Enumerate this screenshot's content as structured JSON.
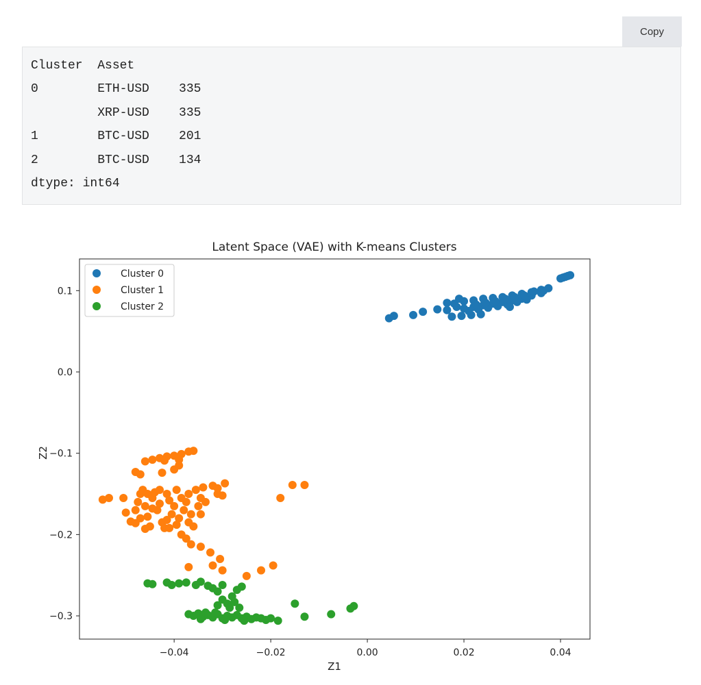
{
  "toolbar": {
    "copy_label": "Copy"
  },
  "output": {
    "lines": [
      "Cluster  Asset",
      "0        ETH-USD    335",
      "         XRP-USD    335",
      "1        BTC-USD    201",
      "2        BTC-USD    134",
      "dtype: int64"
    ]
  },
  "chart_data": {
    "type": "scatter",
    "title": "Latent Space (VAE) with K-means Clusters",
    "xlabel": "Z1",
    "ylabel": "Z2",
    "xlim": [
      -0.0596,
      0.0461
    ],
    "ylim": [
      -0.3286,
      0.139
    ],
    "xticks": [
      -0.04,
      -0.02,
      0.0,
      0.02,
      0.04
    ],
    "xtick_labels": [
      "−0.04",
      "−0.02",
      "0.00",
      "0.02",
      "0.04"
    ],
    "yticks": [
      0.1,
      0.0,
      -0.1,
      -0.2,
      -0.3
    ],
    "ytick_labels": [
      "0.1",
      "0.0",
      "−0.1",
      "−0.2",
      "−0.3"
    ],
    "grid": false,
    "legend_placement": "top-left",
    "series": [
      {
        "name": "Cluster 0",
        "color": "#1f77b4",
        "points": [
          [
            0.0045,
            0.066
          ],
          [
            0.0055,
            0.069
          ],
          [
            0.0095,
            0.07
          ],
          [
            0.0115,
            0.074
          ],
          [
            0.0145,
            0.077
          ],
          [
            0.0165,
            0.076
          ],
          [
            0.0185,
            0.08
          ],
          [
            0.0175,
            0.068
          ],
          [
            0.0195,
            0.069
          ],
          [
            0.0215,
            0.07
          ],
          [
            0.0235,
            0.071
          ],
          [
            0.018,
            0.084
          ],
          [
            0.02,
            0.087
          ],
          [
            0.022,
            0.088
          ],
          [
            0.024,
            0.09
          ],
          [
            0.026,
            0.091
          ],
          [
            0.028,
            0.092
          ],
          [
            0.03,
            0.094
          ],
          [
            0.032,
            0.096
          ],
          [
            0.034,
            0.098
          ],
          [
            0.036,
            0.101
          ],
          [
            0.0375,
            0.103
          ],
          [
            0.02,
            0.078
          ],
          [
            0.022,
            0.08
          ],
          [
            0.024,
            0.082
          ],
          [
            0.026,
            0.084
          ],
          [
            0.028,
            0.086
          ],
          [
            0.03,
            0.088
          ],
          [
            0.032,
            0.09
          ],
          [
            0.034,
            0.094
          ],
          [
            0.036,
            0.097
          ],
          [
            0.021,
            0.075
          ],
          [
            0.023,
            0.077
          ],
          [
            0.025,
            0.079
          ],
          [
            0.027,
            0.081
          ],
          [
            0.029,
            0.083
          ],
          [
            0.031,
            0.086
          ],
          [
            0.033,
            0.089
          ],
          [
            0.0265,
            0.087
          ],
          [
            0.0245,
            0.085
          ],
          [
            0.0225,
            0.083
          ],
          [
            0.0285,
            0.09
          ],
          [
            0.0305,
            0.092
          ],
          [
            0.0325,
            0.094
          ],
          [
            0.0165,
            0.085
          ],
          [
            0.019,
            0.09
          ],
          [
            0.0345,
            0.099
          ],
          [
            0.0365,
            0.1
          ],
          [
            0.0295,
            0.08
          ],
          [
            0.0405,
            0.116
          ],
          [
            0.0415,
            0.118
          ],
          [
            0.042,
            0.119
          ],
          [
            0.041,
            0.117
          ],
          [
            0.04,
            0.115
          ]
        ]
      },
      {
        "name": "Cluster 1",
        "color": "#ff7f0e",
        "points": [
          [
            -0.0548,
            -0.157
          ],
          [
            -0.0535,
            -0.155
          ],
          [
            -0.0505,
            -0.155
          ],
          [
            -0.05,
            -0.173
          ],
          [
            -0.049,
            -0.184
          ],
          [
            -0.048,
            -0.186
          ],
          [
            -0.0475,
            -0.16
          ],
          [
            -0.047,
            -0.15
          ],
          [
            -0.0465,
            -0.145
          ],
          [
            -0.046,
            -0.165
          ],
          [
            -0.0455,
            -0.178
          ],
          [
            -0.045,
            -0.19
          ],
          [
            -0.0445,
            -0.155
          ],
          [
            -0.044,
            -0.148
          ],
          [
            -0.0435,
            -0.17
          ],
          [
            -0.043,
            -0.162
          ],
          [
            -0.0425,
            -0.185
          ],
          [
            -0.042,
            -0.192
          ],
          [
            -0.0415,
            -0.15
          ],
          [
            -0.041,
            -0.158
          ],
          [
            -0.0405,
            -0.175
          ],
          [
            -0.04,
            -0.165
          ],
          [
            -0.0395,
            -0.145
          ],
          [
            -0.039,
            -0.18
          ],
          [
            -0.0385,
            -0.155
          ],
          [
            -0.038,
            -0.17
          ],
          [
            -0.0375,
            -0.16
          ],
          [
            -0.037,
            -0.15
          ],
          [
            -0.0365,
            -0.175
          ],
          [
            -0.036,
            -0.19
          ],
          [
            -0.0355,
            -0.145
          ],
          [
            -0.035,
            -0.165
          ],
          [
            -0.0345,
            -0.155
          ],
          [
            -0.034,
            -0.142
          ],
          [
            -0.0335,
            -0.16
          ],
          [
            -0.048,
            -0.17
          ],
          [
            -0.047,
            -0.18
          ],
          [
            -0.0445,
            -0.168
          ],
          [
            -0.0415,
            -0.182
          ],
          [
            -0.0395,
            -0.188
          ],
          [
            -0.037,
            -0.185
          ],
          [
            -0.0455,
            -0.15
          ],
          [
            -0.043,
            -0.145
          ],
          [
            -0.046,
            -0.193
          ],
          [
            -0.041,
            -0.192
          ],
          [
            -0.048,
            -0.123
          ],
          [
            -0.047,
            -0.126
          ],
          [
            -0.046,
            -0.11
          ],
          [
            -0.0445,
            -0.108
          ],
          [
            -0.043,
            -0.106
          ],
          [
            -0.0415,
            -0.104
          ],
          [
            -0.04,
            -0.103
          ],
          [
            -0.0385,
            -0.101
          ],
          [
            -0.037,
            -0.098
          ],
          [
            -0.036,
            -0.097
          ],
          [
            -0.042,
            -0.109
          ],
          [
            -0.039,
            -0.108
          ],
          [
            -0.0425,
            -0.124
          ],
          [
            -0.04,
            -0.12
          ],
          [
            -0.039,
            -0.115
          ],
          [
            -0.032,
            -0.14
          ],
          [
            -0.031,
            -0.143
          ],
          [
            -0.0295,
            -0.137
          ],
          [
            -0.03,
            -0.152
          ],
          [
            -0.031,
            -0.15
          ],
          [
            -0.0345,
            -0.175
          ],
          [
            -0.0385,
            -0.2
          ],
          [
            -0.0375,
            -0.205
          ],
          [
            -0.0365,
            -0.212
          ],
          [
            -0.0345,
            -0.215
          ],
          [
            -0.0325,
            -0.222
          ],
          [
            -0.0305,
            -0.23
          ],
          [
            -0.032,
            -0.238
          ],
          [
            -0.03,
            -0.244
          ],
          [
            -0.037,
            -0.24
          ],
          [
            -0.025,
            -0.251
          ],
          [
            -0.022,
            -0.244
          ],
          [
            -0.0195,
            -0.238
          ],
          [
            -0.018,
            -0.155
          ],
          [
            -0.0155,
            -0.139
          ],
          [
            -0.013,
            -0.139
          ]
        ]
      },
      {
        "name": "Cluster 2",
        "color": "#2ca02c",
        "points": [
          [
            -0.0455,
            -0.26
          ],
          [
            -0.0445,
            -0.261
          ],
          [
            -0.0415,
            -0.259
          ],
          [
            -0.0405,
            -0.262
          ],
          [
            -0.039,
            -0.26
          ],
          [
            -0.0375,
            -0.259
          ],
          [
            -0.0355,
            -0.262
          ],
          [
            -0.0345,
            -0.258
          ],
          [
            -0.033,
            -0.263
          ],
          [
            -0.032,
            -0.266
          ],
          [
            -0.031,
            -0.27
          ],
          [
            -0.03,
            -0.28
          ],
          [
            -0.031,
            -0.287
          ],
          [
            -0.029,
            -0.285
          ],
          [
            -0.028,
            -0.276
          ],
          [
            -0.027,
            -0.268
          ],
          [
            -0.026,
            -0.264
          ],
          [
            -0.0285,
            -0.29
          ],
          [
            -0.0275,
            -0.283
          ],
          [
            -0.0265,
            -0.29
          ],
          [
            -0.03,
            -0.262
          ],
          [
            -0.037,
            -0.298
          ],
          [
            -0.036,
            -0.3
          ],
          [
            -0.035,
            -0.297
          ],
          [
            -0.034,
            -0.301
          ],
          [
            -0.033,
            -0.299
          ],
          [
            -0.032,
            -0.302
          ],
          [
            -0.031,
            -0.298
          ],
          [
            -0.03,
            -0.303
          ],
          [
            -0.029,
            -0.3
          ],
          [
            -0.028,
            -0.302
          ],
          [
            -0.027,
            -0.299
          ],
          [
            -0.026,
            -0.303
          ],
          [
            -0.025,
            -0.301
          ],
          [
            -0.024,
            -0.304
          ],
          [
            -0.023,
            -0.302
          ],
          [
            -0.022,
            -0.303
          ],
          [
            -0.021,
            -0.305
          ],
          [
            -0.02,
            -0.303
          ],
          [
            -0.0185,
            -0.306
          ],
          [
            -0.0335,
            -0.296
          ],
          [
            -0.0315,
            -0.296
          ],
          [
            -0.0345,
            -0.304
          ],
          [
            -0.0295,
            -0.305
          ],
          [
            -0.0255,
            -0.306
          ],
          [
            -0.015,
            -0.285
          ],
          [
            -0.013,
            -0.301
          ],
          [
            -0.0075,
            -0.298
          ],
          [
            -0.0035,
            -0.291
          ],
          [
            -0.0028,
            -0.288
          ]
        ]
      }
    ]
  }
}
